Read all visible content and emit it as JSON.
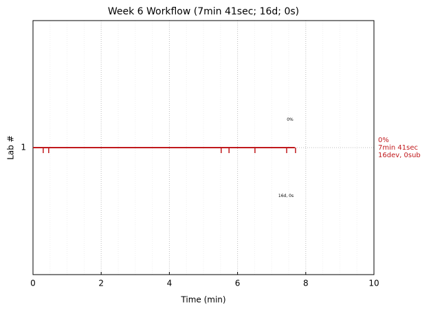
{
  "chart_data": {
    "type": "line",
    "title": "Week 6 Workflow (7min 41sec; 16d; 0s)",
    "x_label": "Time (min)",
    "y_label": "Lab #",
    "xlim": [
      0,
      10
    ],
    "xticks": [
      0,
      2,
      4,
      6,
      8,
      10
    ],
    "xminorticks": [
      0.5,
      1,
      1.5,
      2.5,
      3,
      3.5,
      4.5,
      5,
      5.5,
      6.5,
      7,
      7.5,
      8.5,
      9,
      9.5
    ],
    "ylim": [
      0,
      2
    ],
    "yticks": [
      1
    ],
    "grid": true,
    "series": [
      {
        "color": "#c0181b",
        "x": [
          0,
          7.68
        ],
        "values": [
          1,
          1
        ]
      }
    ],
    "events": [
      0.3,
      0.46,
      5.52,
      5.75,
      6.51,
      7.44,
      7.7
    ],
    "annotations": [
      {
        "text": "0%",
        "x": 7.54,
        "y": 1.22
      },
      {
        "text": "16d, 0s",
        "x": 7.42,
        "y": 0.62
      }
    ],
    "side_labels": [
      "0%",
      "7min 41sec",
      "16dev, 0sub"
    ]
  }
}
